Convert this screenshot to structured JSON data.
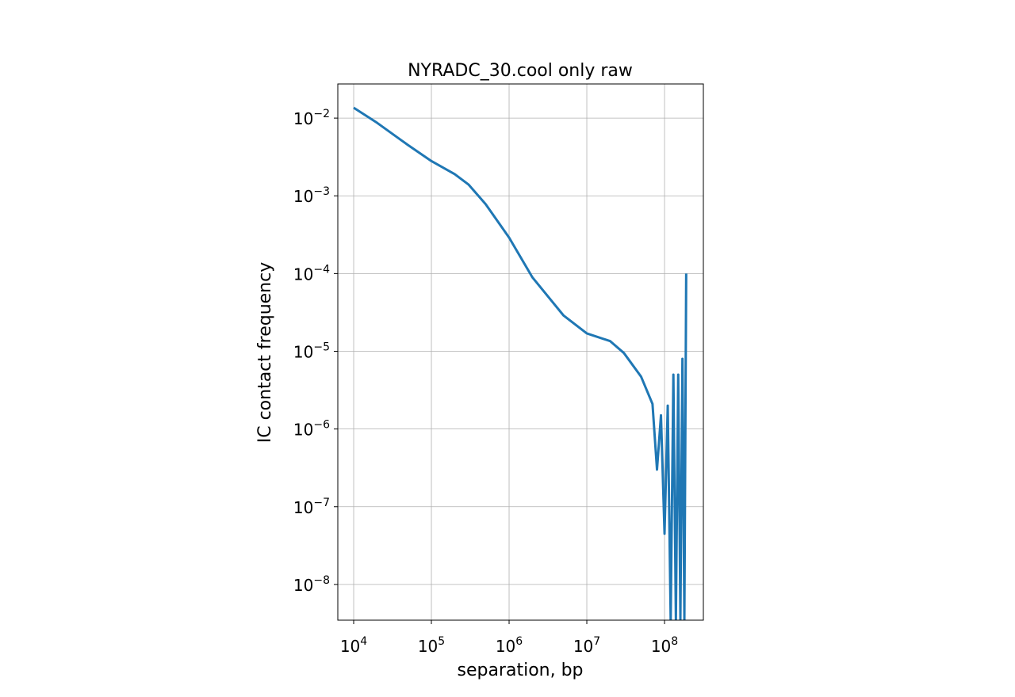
{
  "chart_data": {
    "type": "line",
    "title": "NYRADC_30.cool only raw",
    "x_label": "separation, bp",
    "y_label": "IC contact frequency",
    "log_x": true,
    "log_y": true,
    "grid": true,
    "xlim": [
      6250,
      316000000
    ],
    "ylim": [
      0.0275,
      3.47e-09
    ],
    "xticks": [
      {
        "value": 10000,
        "label": "10^4"
      },
      {
        "value": 100000,
        "label": "10^5"
      },
      {
        "value": 1000000,
        "label": "10^6"
      },
      {
        "value": 10000000,
        "label": "10^7"
      },
      {
        "value": 100000000,
        "label": "10^8"
      }
    ],
    "yticks": [
      {
        "value": 0.01,
        "label": "10^−2"
      },
      {
        "value": 0.001,
        "label": "10^−3"
      },
      {
        "value": 0.0001,
        "label": "10^−4"
      },
      {
        "value": 1e-05,
        "label": "10^−5"
      },
      {
        "value": 1e-06,
        "label": "10^−6"
      },
      {
        "value": 1e-07,
        "label": "10^−7"
      },
      {
        "value": 1e-08,
        "label": "10^−8"
      }
    ],
    "x": [
      10000,
      20000,
      50000,
      100000,
      200000,
      300000,
      500000,
      1000000,
      2000000,
      5000000,
      10000000,
      20000000,
      30000000,
      50000000,
      70000000,
      80000000,
      90000000,
      100000000,
      110000000,
      120000000,
      130000000,
      140000000,
      150000000,
      160000000,
      170000000,
      180000000,
      190000000
    ],
    "series": [
      {
        "name": "raw",
        "color": "#1f77b4",
        "values": [
          0.0136,
          0.0087,
          0.0045,
          0.0028,
          0.0019,
          0.0014,
          0.00078,
          0.00029,
          8.9e-05,
          2.9e-05,
          1.7e-05,
          1.35e-05,
          9.5e-06,
          4.7e-06,
          2.1e-06,
          3e-07,
          1.5e-06,
          4.5e-08,
          2e-06,
          3.5e-09,
          5e-06,
          3.5e-09,
          5e-06,
          3.5e-09,
          8e-06,
          3.5e-09,
          0.0001
        ]
      }
    ]
  }
}
